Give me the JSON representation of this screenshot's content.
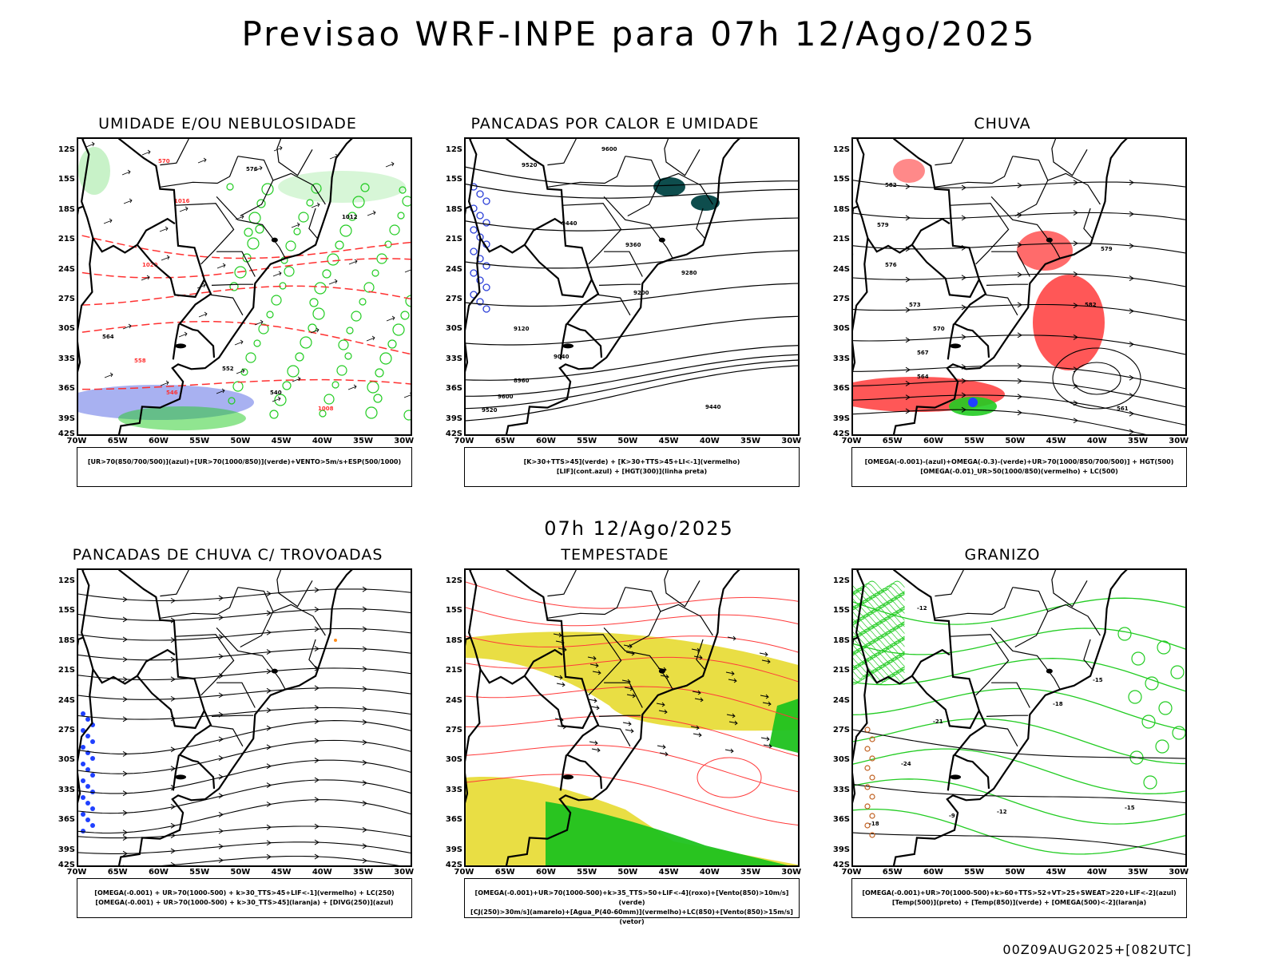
{
  "header": {
    "title": "Previsao WRF-INPE  para 07h 12/Ago/2025",
    "mid_date": "07h 12/Ago/2025",
    "run_label": "00Z09AUG2025+[082UTC]"
  },
  "axes": {
    "lat_ticks": [
      "12S",
      "15S",
      "18S",
      "21S",
      "24S",
      "27S",
      "30S",
      "33S",
      "36S",
      "39S",
      "42S"
    ],
    "lon_ticks": [
      "70W",
      "65W",
      "60W",
      "55W",
      "50W",
      "45W",
      "40W",
      "35W",
      "30W"
    ]
  },
  "panels": [
    {
      "title": "UMIDADE E/OU NEBULOSIDADE",
      "legend": [
        "[UR>70(850/700/500)](azul)+[UR>70(1000/850)](verde)+VENTO>5m/s+ESP(500/1000)"
      ],
      "contour_labels": [
        "570",
        "576",
        "1016",
        "1012",
        "1020",
        "564",
        "558",
        "552",
        "546",
        "540",
        "1008"
      ],
      "colors": {
        "azul": "#9fa8f0",
        "verde": "#22cc22",
        "contour_red": "#ff3030",
        "contour_black": "#000000"
      }
    },
    {
      "title": "PANCADAS POR CALOR E UMIDADE",
      "legend": [
        "[K>30+TTS>45](verde) + [K>30+TTS>45+LI<-1](vermelho)",
        "[LIF](cont.azul) + [HGT(300)](linha preta)"
      ],
      "contour_labels": [
        "9600",
        "9520",
        "9440",
        "9360",
        "9280",
        "9200",
        "9120",
        "9040",
        "8960"
      ],
      "colors": {
        "verde_escuro": "#0e4d4d",
        "azul": "#2b3fd8"
      }
    },
    {
      "title": "CHUVA",
      "legend": [
        "[OMEGA(-0.001)-(azul)+OMEGA(-0.3)-(verde)+UR>70(1000/850/700/500)] + HGT(500)",
        "[OMEGA(-0.01)_UR>50(1000/850)(vermelho) + LC(500)"
      ],
      "contour_labels": [
        "582",
        "579",
        "576",
        "573",
        "570",
        "567",
        "564",
        "561"
      ],
      "colors": {
        "vermelho": "#ff3a3a",
        "azul": "#2040ff",
        "verde": "#22cc22"
      }
    },
    {
      "title": "PANCADAS DE CHUVA C/ TROVOADAS",
      "legend": [
        "[OMEGA(-0.001) + UR>70(1000-500) + k>30_TTS>45+LIF<-1](vermelho) + LC(250)",
        "[OMEGA(-0.001) + UR>70(1000-500) + k>30_TTS>45](laranja) + [DIVG(250)](azul)"
      ],
      "contour_labels": [],
      "colors": {
        "azul": "#2040ff",
        "laranja": "#ff8c1a"
      }
    },
    {
      "title": "TEMPESTADE",
      "legend": [
        "[OMEGA(-0.001)+UR>70(1000-500)+k>35_TTS>50+LIF<-4](roxo)+[Vento(850)>10m/s](verde)",
        "[CJ(250)>30m/s](amarelo)+[Agua_P(40-60mm)](vermelho)+LC(850)+[Vento(850)>15m/s](vetor)"
      ],
      "contour_labels": [],
      "colors": {
        "amarelo": "#e8dc3a",
        "verde": "#1fc21f",
        "vermelho": "#ff3a3a"
      }
    },
    {
      "title": "GRANIZO",
      "legend": [
        "[OMEGA(-0.001)+UR>70(1000-500)+k>60+TTS>52+VT>25+SWEAT>220+LIF<-2](azul)",
        "[Temp(500)](preto) + [Temp(850)](verde) + [OMEGA(500)<-2](laranja)"
      ],
      "contour_labels": [
        "-12",
        "-15",
        "-18",
        "-21",
        "-24",
        "-9"
      ],
      "colors": {
        "verde": "#22cc22",
        "laranja": "#c06020"
      }
    }
  ]
}
